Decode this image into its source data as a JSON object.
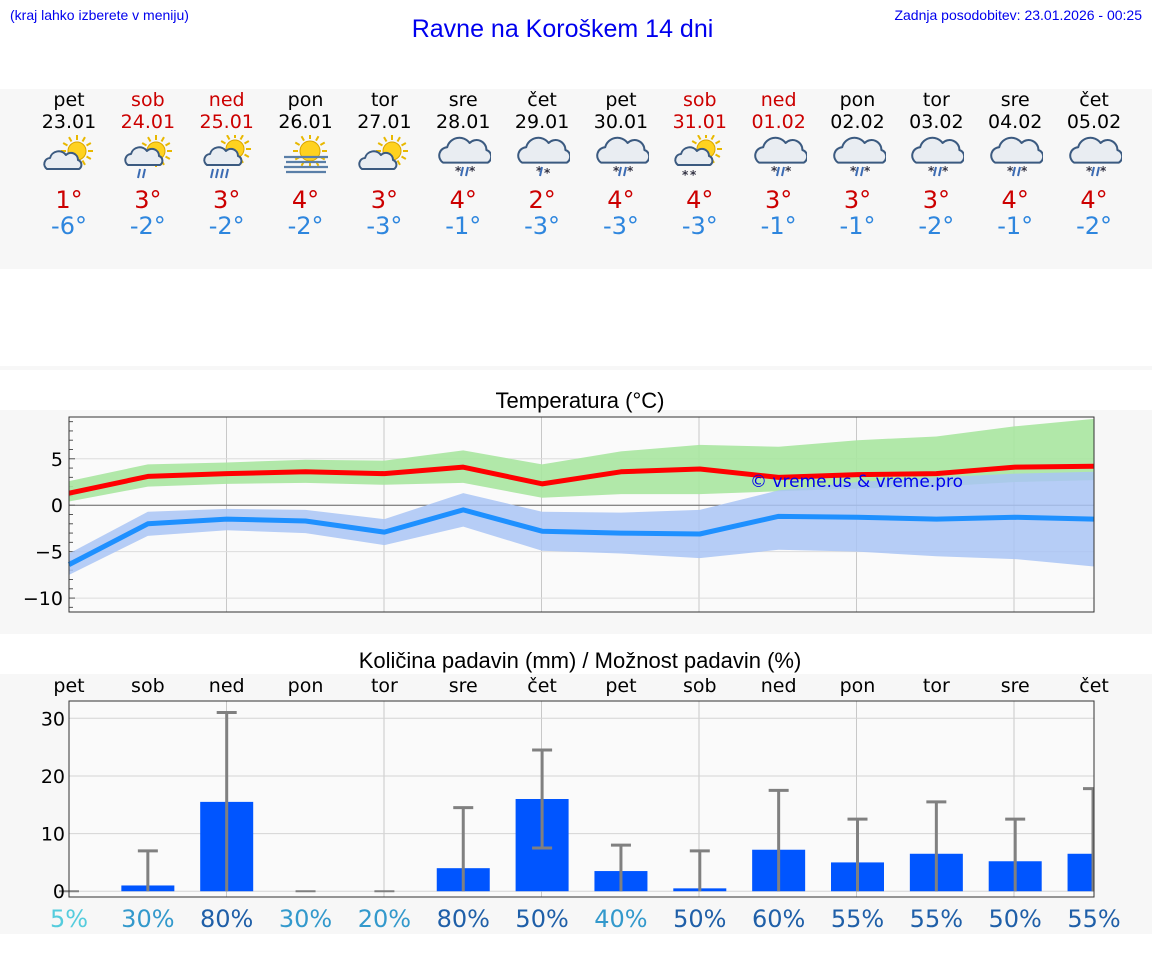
{
  "header": {
    "left_note": "(kraj lahko izberete v meniju)",
    "title": "Ravne na Koroškem 14 dni",
    "updated": "Zadnja posodobitev: 23.01.2026 - 00:25"
  },
  "colors": {
    "title_blue": "#0000ee",
    "weekend_red": "#cc0000",
    "max_line": "#ff0000",
    "max_band": "#a8e6a0",
    "min_line": "#1e90ff",
    "min_band": "#a9c4f5",
    "precip_bar": "#0055ff",
    "error_bar": "#808080"
  },
  "forecast": [
    {
      "day": "pet",
      "date": "23.01",
      "weekend": false,
      "icon": "partly-cloudy-sun-icon",
      "tmax": "1°",
      "tmin": "-6°"
    },
    {
      "day": "sob",
      "date": "24.01",
      "weekend": true,
      "icon": "sun-cloud-light-rain-icon",
      "tmax": "3°",
      "tmin": "-2°"
    },
    {
      "day": "ned",
      "date": "25.01",
      "weekend": true,
      "icon": "sun-cloud-rain-icon",
      "tmax": "3°",
      "tmin": "-2°"
    },
    {
      "day": "pon",
      "date": "26.01",
      "weekend": false,
      "icon": "sun-fog-icon",
      "tmax": "4°",
      "tmin": "-2°"
    },
    {
      "day": "tor",
      "date": "27.01",
      "weekend": false,
      "icon": "partly-cloudy-sun-icon",
      "tmax": "3°",
      "tmin": "-3°"
    },
    {
      "day": "sre",
      "date": "28.01",
      "weekend": false,
      "icon": "cloud-sleet-icon",
      "tmax": "4°",
      "tmin": "-1°"
    },
    {
      "day": "čet",
      "date": "29.01",
      "weekend": false,
      "icon": "cloud-snow-icon",
      "tmax": "2°",
      "tmin": "-3°"
    },
    {
      "day": "pet",
      "date": "30.01",
      "weekend": false,
      "icon": "cloud-sleet-icon",
      "tmax": "4°",
      "tmin": "-3°"
    },
    {
      "day": "sob",
      "date": "31.01",
      "weekend": true,
      "icon": "sun-cloud-snow-icon",
      "tmax": "4°",
      "tmin": "-3°"
    },
    {
      "day": "ned",
      "date": "01.02",
      "weekend": true,
      "icon": "cloud-sleet-icon",
      "tmax": "3°",
      "tmin": "-1°"
    },
    {
      "day": "pon",
      "date": "02.02",
      "weekend": false,
      "icon": "cloud-sleet-icon",
      "tmax": "3°",
      "tmin": "-1°"
    },
    {
      "day": "tor",
      "date": "03.02",
      "weekend": false,
      "icon": "cloud-sleet-icon",
      "tmax": "3°",
      "tmin": "-2°"
    },
    {
      "day": "sre",
      "date": "04.02",
      "weekend": false,
      "icon": "cloud-sleet-icon",
      "tmax": "4°",
      "tmin": "-1°"
    },
    {
      "day": "čet",
      "date": "05.02",
      "weekend": false,
      "icon": "cloud-sleet-icon",
      "tmax": "4°",
      "tmin": "-2°"
    }
  ],
  "chart_data": [
    {
      "type": "line",
      "title": "Temperatura (°C)",
      "x": [
        0,
        1,
        2,
        3,
        4,
        5,
        6,
        7,
        8,
        9,
        10,
        11,
        12,
        13
      ],
      "ylim": [
        -11.5,
        9.5
      ],
      "yticks": [
        "5",
        "0",
        "−5",
        "−10"
      ],
      "ytick_values": [
        5,
        0,
        -5,
        -10
      ],
      "watermark": "© vreme.us & vreme.pro",
      "series": [
        {
          "name": "max",
          "values": [
            1.3,
            3.1,
            3.4,
            3.6,
            3.4,
            4.1,
            2.3,
            3.6,
            3.9,
            3.0,
            3.3,
            3.4,
            4.1,
            4.2
          ],
          "band_low": [
            0.4,
            2.0,
            2.3,
            2.4,
            2.2,
            2.4,
            0.8,
            1.2,
            1.2,
            1.5,
            1.8,
            2.0,
            2.5,
            2.7
          ],
          "band_high": [
            2.6,
            4.4,
            4.6,
            4.9,
            4.8,
            5.9,
            4.4,
            5.8,
            6.5,
            6.3,
            7.0,
            7.4,
            8.5,
            9.3
          ]
        },
        {
          "name": "min",
          "values": [
            -6.4,
            -2.0,
            -1.5,
            -1.7,
            -2.9,
            -0.5,
            -2.8,
            -3.0,
            -3.1,
            -1.2,
            -1.3,
            -1.5,
            -1.3,
            -1.5
          ],
          "band_low": [
            -7.5,
            -3.3,
            -2.7,
            -3.0,
            -4.3,
            -2.3,
            -4.9,
            -5.2,
            -5.7,
            -4.8,
            -5.0,
            -5.5,
            -5.8,
            -6.6
          ],
          "band_high": [
            -5.2,
            -0.7,
            -0.4,
            -0.5,
            -1.5,
            1.3,
            -0.7,
            -0.8,
            -0.5,
            1.6,
            2.5,
            3.0,
            3.4,
            3.6
          ]
        }
      ]
    },
    {
      "type": "bar",
      "title": "Količina padavin (mm) / Možnost padavin (%)",
      "categories": [
        "pet",
        "sob",
        "ned",
        "pon",
        "tor",
        "sre",
        "čet",
        "pet",
        "sob",
        "ned",
        "pon",
        "tor",
        "sre",
        "čet"
      ],
      "values": [
        0,
        1,
        15.5,
        0,
        0,
        4,
        16,
        3.5,
        0.5,
        7.2,
        5,
        6.5,
        5.2,
        6.5
      ],
      "error_high": [
        0,
        7,
        31,
        0,
        0,
        14.5,
        24.5,
        8,
        7,
        17.5,
        12.5,
        15.5,
        12.5,
        17.8
      ],
      "error_low": [
        0,
        0,
        0,
        0,
        0,
        0,
        7.5,
        0,
        0,
        0,
        0,
        0,
        0,
        0
      ],
      "ylim": [
        -1,
        33
      ],
      "yticks": [
        "30",
        "20",
        "10",
        "0"
      ],
      "ytick_values": [
        30,
        20,
        10,
        0
      ],
      "probability": [
        "5%",
        "30%",
        "80%",
        "30%",
        "20%",
        "80%",
        "50%",
        "40%",
        "50%",
        "60%",
        "55%",
        "55%",
        "50%",
        "55%"
      ],
      "probability_colors": [
        "#55ccdd",
        "#3399cc",
        "#1f5fa8",
        "#3399cc",
        "#3399cc",
        "#1f5fa8",
        "#1f5fa8",
        "#3399cc",
        "#1f5fa8",
        "#1f5fa8",
        "#1f5fa8",
        "#1f5fa8",
        "#1f5fa8",
        "#1f5fa8"
      ]
    }
  ]
}
